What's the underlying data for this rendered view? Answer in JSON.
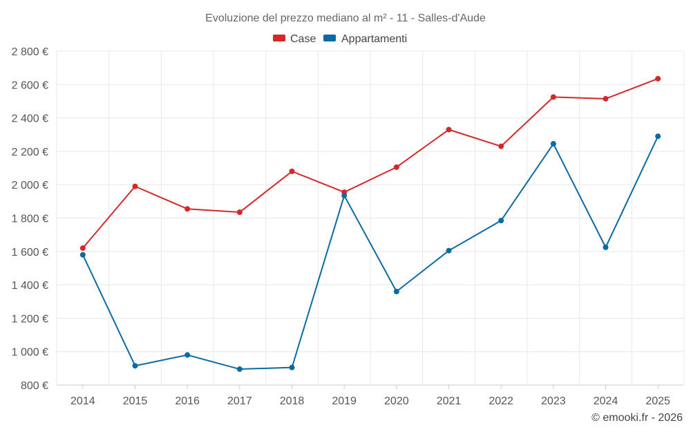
{
  "chart_data": {
    "type": "line",
    "title": "Evoluzione del prezzo mediano al m² - 11 - Salles-d'Aude",
    "xlabel": "",
    "ylabel": "",
    "categories": [
      "2014",
      "2015",
      "2016",
      "2017",
      "2018",
      "2019",
      "2020",
      "2021",
      "2022",
      "2023",
      "2024",
      "2025"
    ],
    "series": [
      {
        "name": "Case",
        "color": "#d62728",
        "values": [
          1620,
          1990,
          1855,
          1835,
          2080,
          1955,
          2105,
          2330,
          2230,
          2525,
          2515,
          2635
        ]
      },
      {
        "name": "Appartamenti",
        "color": "#0a6aa1",
        "values": [
          1580,
          915,
          980,
          895,
          905,
          1935,
          1360,
          1605,
          1785,
          2245,
          1625,
          2290
        ]
      }
    ],
    "ylim": [
      800,
      2800
    ],
    "yticks": [
      800,
      1000,
      1200,
      1400,
      1600,
      1800,
      2000,
      2200,
      2400,
      2600,
      2800
    ],
    "ytick_labels": [
      "800 €",
      "1 000 €",
      "1 200 €",
      "1 400 €",
      "1 600 €",
      "1 800 €",
      "2 000 €",
      "2 200 €",
      "2 400 €",
      "2 600 €",
      "2 800 €"
    ],
    "grid": true,
    "legend_position": "top-center"
  },
  "credit": "© emooki.fr - 2026"
}
